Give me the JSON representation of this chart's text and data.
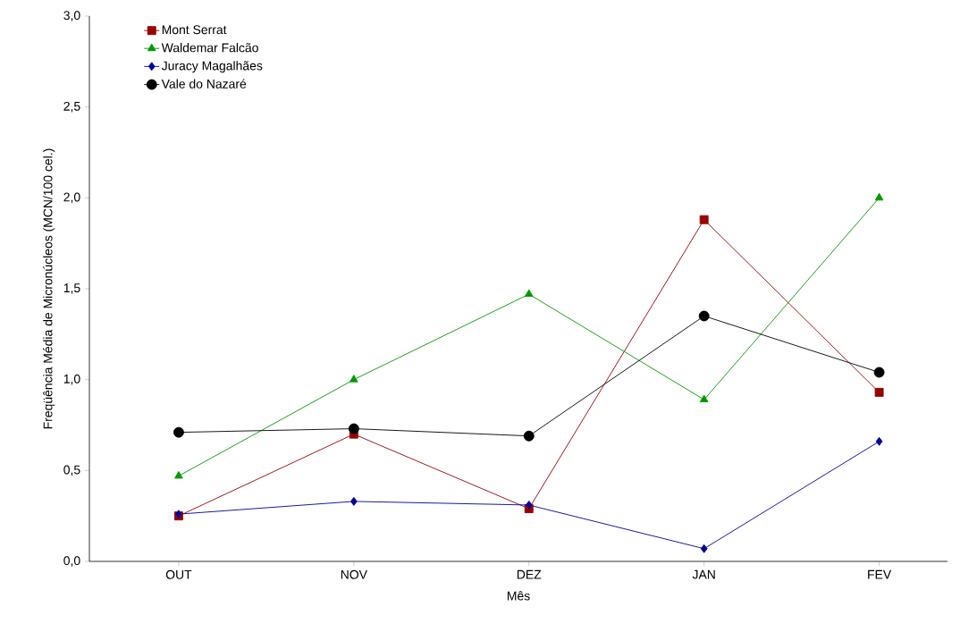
{
  "chart_data": {
    "type": "line",
    "xlabel": "Mês",
    "ylabel": "Freqüência Média de Micronúcleos (MCN/100 cel.)",
    "categories": [
      "OUT",
      "NOV",
      "DEZ",
      "JAN",
      "FEV"
    ],
    "series": [
      {
        "name": "Mont Serrat",
        "color": "#990000",
        "marker": "square",
        "values": [
          0.25,
          0.7,
          0.29,
          1.88,
          0.93
        ]
      },
      {
        "name": "Waldemar Falcão",
        "color": "#009900",
        "marker": "triangle",
        "values": [
          0.47,
          1.0,
          1.47,
          0.89,
          2.0
        ]
      },
      {
        "name": "Juracy Magalhães",
        "color": "#000099",
        "marker": "diamond",
        "values": [
          0.26,
          0.33,
          0.31,
          0.07,
          0.66
        ]
      },
      {
        "name": "Vale do Nazaré",
        "color": "#000000",
        "marker": "circle",
        "values": [
          0.71,
          0.73,
          0.69,
          1.35,
          1.04
        ]
      }
    ],
    "ylim": [
      0,
      3.0
    ],
    "yticks": [
      {
        "value": 0,
        "label": "0,0"
      },
      {
        "value": 0.5,
        "label": "0,5"
      },
      {
        "value": 1.0,
        "label": "1,0"
      },
      {
        "value": 1.5,
        "label": "1,5"
      },
      {
        "value": 2.0,
        "label": "2,0"
      },
      {
        "value": 2.5,
        "label": "2,5"
      },
      {
        "value": 3.0,
        "label": "3,0"
      }
    ],
    "grid": false,
    "legend": "top left",
    "line_style": "solid"
  }
}
